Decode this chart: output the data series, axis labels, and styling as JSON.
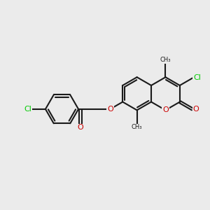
{
  "bg_color": "#ebebeb",
  "bond_color": "#1a1a1a",
  "bond_width": 1.5,
  "atom_colors": {
    "Cl": "#00cc00",
    "O": "#cc0000",
    "C": "#1a1a1a"
  },
  "font_size_atom": 8
}
